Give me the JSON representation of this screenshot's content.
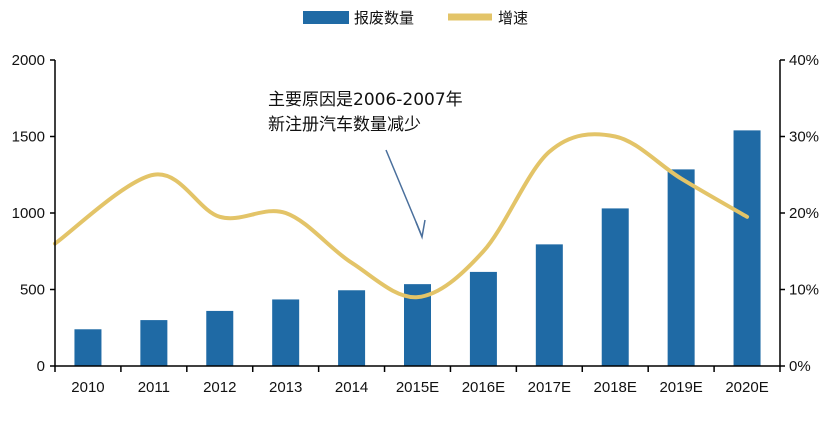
{
  "chart_data": {
    "type": "bar",
    "categories": [
      "2010",
      "2011",
      "2012",
      "2013",
      "2014",
      "2015E",
      "2016E",
      "2017E",
      "2018E",
      "2019E",
      "2020E"
    ],
    "series": [
      {
        "name": "报废数量",
        "type": "bar",
        "axis": "left",
        "color": "#1f6aa5",
        "values": [
          240,
          300,
          360,
          435,
          495,
          535,
          615,
          795,
          1030,
          1285,
          1540
        ]
      },
      {
        "name": "增速",
        "type": "line",
        "axis": "right",
        "color": "#e3c468",
        "values": [
          16,
          25,
          19.5,
          20,
          13.5,
          9,
          15,
          28,
          30,
          24.5,
          19.5
        ]
      }
    ],
    "y_left": {
      "min": 0,
      "max": 2000,
      "ticks": [
        "0",
        "500",
        "1000",
        "1500",
        "2000"
      ]
    },
    "y_right": {
      "min": 0,
      "max": 40,
      "ticks": [
        "0%",
        "10%",
        "20%",
        "30%",
        "40%"
      ]
    },
    "legend": {
      "position": "top-center"
    },
    "annotation": {
      "lines": [
        "主要原因是2006-2007年",
        "新注册汽车数量减少"
      ],
      "target_category": "2015E"
    },
    "grid": false
  }
}
